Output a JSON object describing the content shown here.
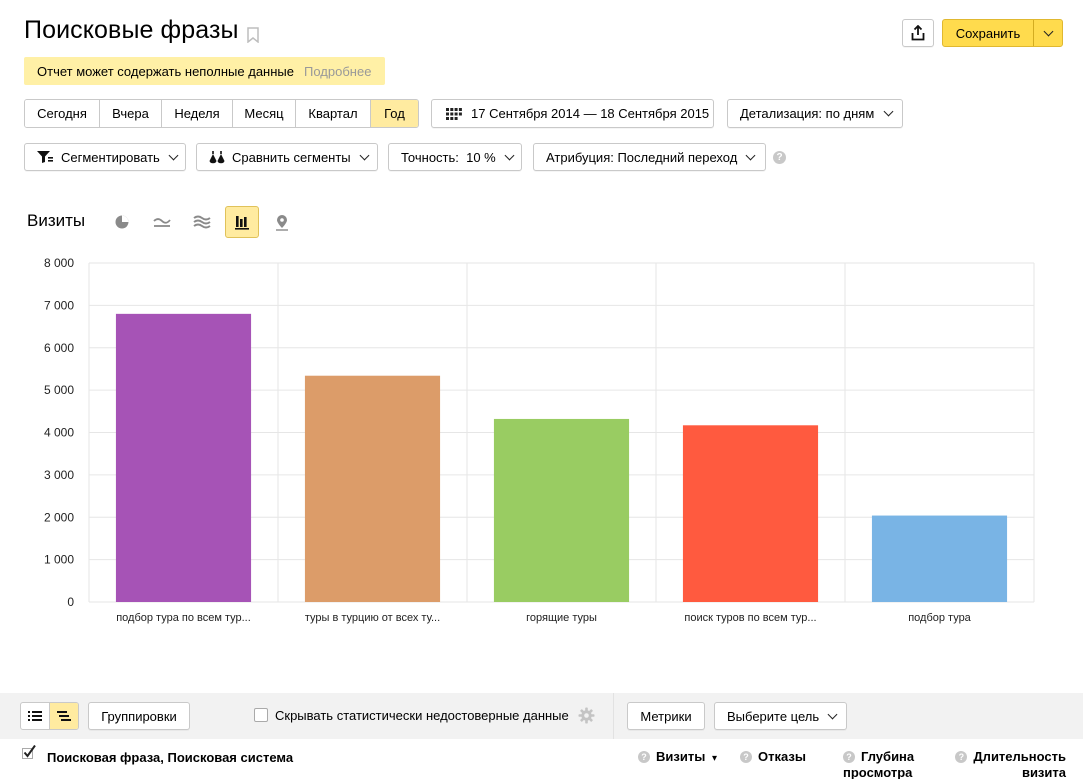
{
  "header": {
    "title": "Поисковые фразы",
    "save_label": "Сохранить"
  },
  "notice": {
    "text": "Отчет может содержать неполные данные",
    "more": "Подробнее"
  },
  "periods": [
    "Сегодня",
    "Вчера",
    "Неделя",
    "Месяц",
    "Квартал",
    "Год"
  ],
  "active_period": "Год",
  "date_range": "17 Сентября 2014 — 18 Сентября 2015",
  "detail": "Детализация: по дням",
  "filters": {
    "segment": "Сегментировать",
    "compare": "Сравнить сегменты",
    "accuracy": "Точность:  10 %",
    "attribution": "Атрибуция: Последний переход"
  },
  "chart_header": {
    "title": "Визиты"
  },
  "chart_data": {
    "type": "bar",
    "categories": [
      "подбор тура по всем тур...",
      "туры в турцию от всех ту...",
      "горящие туры",
      "поиск туров по всем тур...",
      "подбор тура"
    ],
    "values": [
      6800,
      5340,
      4320,
      4170,
      2040
    ],
    "colors": [
      "#a653b6",
      "#dc9c69",
      "#99cc62",
      "#ff5a3f",
      "#79b4e5"
    ],
    "yticks": [
      "0",
      "1 000",
      "2 000",
      "3 000",
      "4 000",
      "5 000",
      "6 000",
      "7 000",
      "8 000"
    ],
    "ylim": [
      0,
      8000
    ],
    "grid": true
  },
  "bottom": {
    "groupings": "Группировки",
    "hide_label": "Скрывать статистически недостоверные данные",
    "metrics": "Метрики",
    "goal": "Выберите цель"
  },
  "table": {
    "dimension_label": "Поисковая фраза, Поисковая система",
    "columns": [
      {
        "label": "Визиты",
        "sorted": true,
        "sort_mark": "▾"
      },
      {
        "label": "Отказы"
      },
      {
        "label": "Глубина просмотра"
      },
      {
        "label": "Длительность визита"
      }
    ]
  }
}
